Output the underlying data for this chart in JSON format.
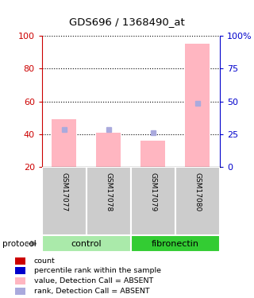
{
  "title": "GDS696 / 1368490_at",
  "samples": [
    "GSM17077",
    "GSM17078",
    "GSM17079",
    "GSM17080"
  ],
  "groups": [
    "control",
    "control",
    "fibronectin",
    "fibronectin"
  ],
  "bar_values": [
    49,
    41,
    36,
    95
  ],
  "rank_values": [
    43,
    43,
    41,
    59
  ],
  "ylim_left": [
    20,
    100
  ],
  "ylim_right": [
    0,
    100
  ],
  "yticks_left": [
    20,
    40,
    60,
    80,
    100
  ],
  "yticks_right": [
    0,
    25,
    50,
    75,
    100
  ],
  "yticklabels_right": [
    "0",
    "25",
    "50",
    "75",
    "100%"
  ],
  "bar_color": "#FFB6C1",
  "rank_color": "#AAAADD",
  "left_tick_color": "#CC0000",
  "right_tick_color": "#0000CC",
  "group_colors": {
    "control": "#AAEAAA",
    "fibronectin": "#33CC33"
  },
  "legend_items": [
    {
      "color": "#CC0000",
      "label": "count"
    },
    {
      "color": "#0000CC",
      "label": "percentile rank within the sample"
    },
    {
      "color": "#FFB6C1",
      "label": "value, Detection Call = ABSENT"
    },
    {
      "color": "#AAAADD",
      "label": "rank, Detection Call = ABSENT"
    }
  ]
}
